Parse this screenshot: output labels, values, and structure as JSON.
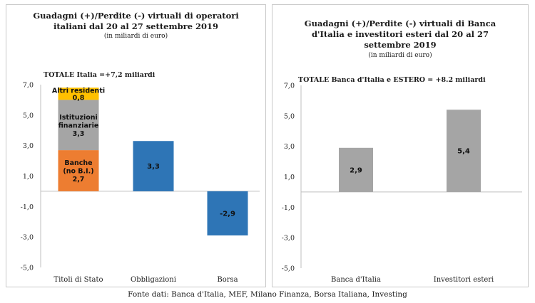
{
  "left": {
    "title_line1": "Guadagni (+)/Perdite (-) virtuali di operatori",
    "title_line2": "italiani dal 20 al 27 settembre 2019",
    "subtitle": "(in miliardi di euro)",
    "total_label": "TOTALE Italia =+7,2 miliardi"
  },
  "right": {
    "title_line1": "Guadagni (+)/Perdite (-) virtuali di Banca",
    "title_line2": "d'Italia e investitori esteri dal 20 al 27",
    "title_line3": "settembre 2019",
    "subtitle": "(in miliardi di euro)",
    "total_label": "TOTALE Banca d'Italia e ESTERO = +8.2 miliardi"
  },
  "source": "Fonte dati: Banca d'Italia, MEF, Milano Finanza, Borsa Italiana, Investing",
  "chart_data": [
    {
      "type": "bar",
      "stacked": true,
      "ylim": [
        -5.0,
        7.0
      ],
      "ytick_labels": [
        "7,0",
        "5,0",
        "3,0",
        "1,0",
        "-1,0",
        "-3,0",
        "-5,0"
      ],
      "yticks": [
        7,
        5,
        3,
        1,
        -1,
        -3,
        -5
      ],
      "categories": [
        "Titoli di Stato",
        "Obbligazioni",
        "Borsa"
      ],
      "stack": [
        {
          "segment": "Banche",
          "label_lines": [
            "Banche",
            "(no B.I.)"
          ],
          "value": 2.7,
          "value_label": "2,7",
          "color": "#ED7D31"
        },
        {
          "segment": "Istituzioni finanziarie",
          "label_lines": [
            "Istituzioni",
            "finanziarie"
          ],
          "value": 3.3,
          "value_label": "3,3",
          "color": "#A5A5A5"
        },
        {
          "segment": "Altri residenti",
          "label_lines": [
            "Altri residenti"
          ],
          "value": 0.8,
          "value_label": "0,8",
          "color": "#FFC000"
        }
      ],
      "bars": [
        {
          "category": "Obbligazioni",
          "value": 3.3,
          "value_label": "3,3",
          "color": "#2E75B6"
        },
        {
          "category": "Borsa",
          "value": -2.9,
          "value_label": "-2,9",
          "color": "#2E75B6"
        }
      ]
    },
    {
      "type": "bar",
      "ylim": [
        -5.0,
        7.0
      ],
      "ytick_labels": [
        "7,0",
        "5,0",
        "3,0",
        "1,0",
        "-1,0",
        "-3,0",
        "-5,0"
      ],
      "yticks": [
        7,
        5,
        3,
        1,
        -1,
        -3,
        -5
      ],
      "categories": [
        "Banca d'Italia",
        "Investitori esteri"
      ],
      "values": [
        2.9,
        5.4
      ],
      "value_labels": [
        "2,9",
        "5,4"
      ],
      "color": "#A5A5A5"
    }
  ]
}
